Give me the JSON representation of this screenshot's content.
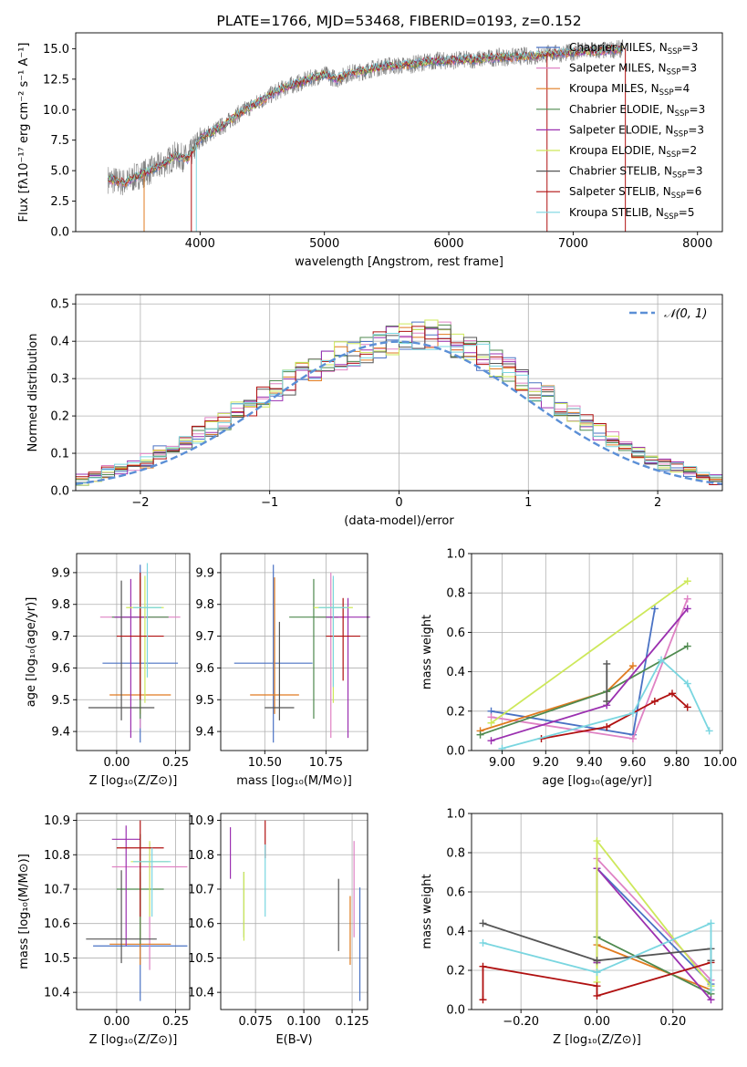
{
  "chart_data": [
    {
      "id": "spectrum",
      "type": "line",
      "title": "PLATE=1766, MJD=53468, FIBERID=0193, z=0.152",
      "xlabel": "wavelength [Angstrom, rest frame]",
      "ylabel": "Flux [fλ10⁻¹⁷ erg cm⁻² s⁻¹ A⁻¹]",
      "xlim": [
        3000,
        8200
      ],
      "ylim": [
        0,
        16.3
      ],
      "xticks": [
        4000,
        5000,
        6000,
        7000,
        8000
      ],
      "yticks": [
        0.0,
        2.5,
        5.0,
        7.5,
        10.0,
        12.5,
        15.0
      ],
      "grid": false,
      "legend_position": "top-right",
      "legend": [
        "Chabrier MILES, N",
        "Salpeter MILES, N",
        "Kroupa MILES, N",
        "Chabrier ELODIE, N",
        "Salpeter ELODIE, N",
        "Kroupa ELODIE, N",
        "Chabrier STELIB, N",
        "Salpeter STELIB, N",
        "Kroupa STELIB, N"
      ],
      "legend_sub": "SSP",
      "legend_n": [
        "3",
        "3",
        "4",
        "3",
        "3",
        "2",
        "3",
        "6",
        "5"
      ],
      "series_colors": [
        "#4a72c4",
        "#df82c4",
        "#e07b20",
        "#4f8a4f",
        "#9b30b0",
        "#cde85a",
        "#555555",
        "#b01010",
        "#7ad6e0"
      ],
      "observed_color": "#808080",
      "spectrum_x": [
        3260,
        3400,
        3500,
        3600,
        3700,
        3800,
        3900,
        4000,
        4100,
        4200,
        4300,
        4400,
        4500,
        4600,
        4700,
        4800,
        4900,
        5000,
        5100,
        5200,
        5300,
        5400,
        5500,
        5600,
        5700,
        5800,
        5900,
        6000,
        6100,
        6200,
        6300,
        6400,
        6500,
        6600,
        6700,
        6800,
        6900,
        7000,
        7100,
        7200,
        7300,
        7400
      ],
      "spectrum_y": [
        4.3,
        4.0,
        4.6,
        5.0,
        5.5,
        6.2,
        6.0,
        7.6,
        8.2,
        8.8,
        9.6,
        10.2,
        10.8,
        11.4,
        11.9,
        12.2,
        12.6,
        12.9,
        12.5,
        13.0,
        13.1,
        13.4,
        13.6,
        13.6,
        13.7,
        13.9,
        14.0,
        14.0,
        14.1,
        14.1,
        14.2,
        14.3,
        14.3,
        14.4,
        14.4,
        14.6,
        14.6,
        14.7,
        14.8,
        14.8,
        14.9,
        15.0
      ]
    },
    {
      "id": "residuals",
      "type": "line",
      "xlabel": "(data-model)/error",
      "ylabel": "Normed distribution",
      "xlim": [
        -2.5,
        2.5
      ],
      "ylim": [
        0,
        0.525
      ],
      "xticks": [
        -2,
        -1,
        0,
        1,
        2
      ],
      "yticks": [
        0.0,
        0.1,
        0.2,
        0.3,
        0.4,
        0.5
      ],
      "grid": true,
      "legend_position": "top-right",
      "legend": [
        "𝒩(0, 1)"
      ],
      "reference_curve": "normal(0,1) pdf",
      "reference_color": "#5b8fd6",
      "bin_edges_start": -2.5,
      "bin_width": 0.1,
      "hist_base": [
        0.03,
        0.04,
        0.05,
        0.06,
        0.07,
        0.08,
        0.1,
        0.11,
        0.13,
        0.15,
        0.17,
        0.19,
        0.21,
        0.23,
        0.25,
        0.27,
        0.29,
        0.31,
        0.33,
        0.35,
        0.36,
        0.37,
        0.38,
        0.39,
        0.4,
        0.41,
        0.42,
        0.42,
        0.41,
        0.39,
        0.38,
        0.36,
        0.34,
        0.32,
        0.29,
        0.27,
        0.25,
        0.22,
        0.2,
        0.18,
        0.16,
        0.14,
        0.12,
        0.1,
        0.08,
        0.07,
        0.06,
        0.05,
        0.04,
        0.03
      ]
    },
    {
      "id": "age-vs-Z",
      "type": "scatter",
      "xlabel": "Z [log₁₀(Z/Z⊙)]",
      "ylabel": "age  [log₁₀(age/yr)]",
      "xlim": [
        -0.17,
        0.31
      ],
      "ylim": [
        9.34,
        9.96
      ],
      "xticks": [
        0.0,
        0.25
      ],
      "yticks": [
        9.4,
        9.5,
        9.6,
        9.7,
        9.8,
        9.9
      ],
      "grid": true,
      "points": [
        {
          "x": 0.1,
          "y": 9.615,
          "xerr": 0.16,
          "yerr_lo": 0.25,
          "yerr_hi": 0.31,
          "color": "#4a72c4"
        },
        {
          "x": 0.1,
          "y": 9.76,
          "xerr": 0.17,
          "yerr_lo": 0.35,
          "yerr_hi": 0.12,
          "color": "#df82c4"
        },
        {
          "x": 0.1,
          "y": 9.515,
          "xerr": 0.13,
          "yerr_lo": 0.06,
          "yerr_hi": 0.37,
          "color": "#e07b20"
        },
        {
          "x": 0.1,
          "y": 9.76,
          "xerr": 0.12,
          "yerr_lo": 0.32,
          "yerr_hi": 0.12,
          "color": "#4f8a4f"
        },
        {
          "x": 0.06,
          "y": 9.76,
          "xerr": 0.07,
          "yerr_lo": 0.38,
          "yerr_hi": 0.12,
          "color": "#9b30b0"
        },
        {
          "x": 0.12,
          "y": 9.79,
          "xerr": 0.08,
          "yerr_lo": 0.3,
          "yerr_hi": 0.1,
          "color": "#cde85a"
        },
        {
          "x": 0.02,
          "y": 9.475,
          "xerr": 0.14,
          "yerr_lo": 0.04,
          "yerr_hi": 0.4,
          "color": "#555555"
        },
        {
          "x": 0.1,
          "y": 9.7,
          "xerr": 0.1,
          "yerr_lo": 0.2,
          "yerr_hi": 0.2,
          "color": "#b01010"
        },
        {
          "x": 0.13,
          "y": 9.79,
          "xerr": 0.06,
          "yerr_lo": 0.22,
          "yerr_hi": 0.14,
          "color": "#7ad6e0"
        }
      ]
    },
    {
      "id": "age-vs-mass",
      "type": "scatter",
      "xlabel": "mass [log₁₀(M/M⊙)]",
      "ylabel": "",
      "xlim": [
        10.32,
        10.92
      ],
      "ylim": [
        9.34,
        9.96
      ],
      "xticks": [
        10.5,
        10.75
      ],
      "yticks": [
        9.4,
        9.5,
        9.6,
        9.7,
        9.8,
        9.9
      ],
      "grid": true,
      "points": [
        {
          "x": 10.535,
          "y": 9.615,
          "xerr": 0.16,
          "yerr_lo": 0.25,
          "yerr_hi": 0.31,
          "color": "#4a72c4"
        },
        {
          "x": 10.77,
          "y": 9.76,
          "xerr": 0.06,
          "yerr_lo": 0.38,
          "yerr_hi": 0.14,
          "color": "#df82c4"
        },
        {
          "x": 10.54,
          "y": 9.515,
          "xerr": 0.1,
          "yerr_lo": 0.06,
          "yerr_hi": 0.37,
          "color": "#e07b20"
        },
        {
          "x": 10.7,
          "y": 9.76,
          "xerr": 0.1,
          "yerr_lo": 0.32,
          "yerr_hi": 0.12,
          "color": "#4f8a4f"
        },
        {
          "x": 10.84,
          "y": 9.76,
          "xerr": 0.09,
          "yerr_lo": 0.38,
          "yerr_hi": 0.06,
          "color": "#9b30b0"
        },
        {
          "x": 10.78,
          "y": 9.79,
          "xerr": 0.08,
          "yerr_lo": 0.3,
          "yerr_hi": 0.09,
          "color": "#cde85a"
        },
        {
          "x": 10.56,
          "y": 9.475,
          "xerr": 0.06,
          "yerr_lo": 0.04,
          "yerr_hi": 0.27,
          "color": "#555555"
        },
        {
          "x": 10.82,
          "y": 9.7,
          "xerr": 0.07,
          "yerr_lo": 0.14,
          "yerr_hi": 0.12,
          "color": "#b01010"
        },
        {
          "x": 10.78,
          "y": 9.79,
          "xerr": 0.06,
          "yerr_lo": 0.25,
          "yerr_hi": 0.1,
          "color": "#7ad6e0"
        }
      ]
    },
    {
      "id": "massweight-vs-age",
      "type": "line",
      "xlabel": "age  [log₁₀(age/yr)]",
      "ylabel": "mass weight",
      "xlim": [
        8.86,
        10.01
      ],
      "ylim": [
        0,
        1.0
      ],
      "xticks": [
        9.0,
        9.2,
        9.4,
        9.6,
        9.8,
        10.0
      ],
      "yticks": [
        0.0,
        0.2,
        0.4,
        0.6,
        0.8,
        1.0
      ],
      "grid": true,
      "series": [
        {
          "color": "#4a72c4",
          "x": [
            8.95,
            9.6,
            9.7
          ],
          "y": [
            0.2,
            0.08,
            0.72
          ]
        },
        {
          "color": "#df82c4",
          "x": [
            8.95,
            9.6,
            9.85
          ],
          "y": [
            0.17,
            0.06,
            0.77
          ]
        },
        {
          "color": "#e07b20",
          "x": [
            8.9,
            9.48,
            9.6
          ],
          "y": [
            0.1,
            0.3,
            0.43
          ]
        },
        {
          "color": "#4f8a4f",
          "x": [
            8.9,
            9.48,
            9.85
          ],
          "y": [
            0.08,
            0.3,
            0.53
          ]
        },
        {
          "color": "#9b30b0",
          "x": [
            8.95,
            9.48,
            9.85
          ],
          "y": [
            0.05,
            0.23,
            0.72
          ]
        },
        {
          "color": "#cde85a",
          "x": [
            8.95,
            9.85
          ],
          "y": [
            0.14,
            0.86
          ]
        },
        {
          "color": "#555555",
          "x": [
            9.48,
            9.48
          ],
          "y": [
            0.25,
            0.44
          ]
        },
        {
          "color": "#b01010",
          "x": [
            9.18,
            9.48,
            9.7,
            9.78,
            9.85
          ],
          "y": [
            0.06,
            0.12,
            0.25,
            0.29,
            0.22
          ]
        },
        {
          "color": "#7ad6e0",
          "x": [
            9.0,
            9.6,
            9.73,
            9.85,
            9.95
          ],
          "y": [
            0.01,
            0.19,
            0.46,
            0.34,
            0.1
          ]
        }
      ]
    },
    {
      "id": "mass-vs-Z",
      "type": "scatter",
      "xlabel": "Z [log₁₀(Z/Z⊙)]",
      "ylabel": "mass [log₁₀(M/M⊙)]",
      "xlim": [
        -0.17,
        0.31
      ],
      "ylim": [
        10.35,
        10.92
      ],
      "xticks": [
        0.0,
        0.25
      ],
      "yticks": [
        10.4,
        10.5,
        10.6,
        10.7,
        10.8,
        10.9
      ],
      "grid": true,
      "points": [
        {
          "x": 0.1,
          "y": 10.535,
          "xerr": 0.2,
          "yerr_lo": 0.16,
          "yerr_hi": 0.2,
          "color": "#4a72c4"
        },
        {
          "x": 0.14,
          "y": 10.765,
          "xerr": 0.16,
          "yerr_lo": 0.3,
          "yerr_hi": 0.07,
          "color": "#df82c4"
        },
        {
          "x": 0.1,
          "y": 10.54,
          "xerr": 0.13,
          "yerr_lo": 0.06,
          "yerr_hi": 0.21,
          "color": "#e07b20"
        },
        {
          "x": 0.1,
          "y": 10.7,
          "xerr": 0.1,
          "yerr_lo": 0.16,
          "yerr_hi": 0.16,
          "color": "#4f8a4f"
        },
        {
          "x": 0.04,
          "y": 10.845,
          "xerr": 0.06,
          "yerr_lo": 0.31,
          "yerr_hi": 0.04,
          "color": "#9b30b0"
        },
        {
          "x": 0.14,
          "y": 10.78,
          "xerr": 0.08,
          "yerr_lo": 0.16,
          "yerr_hi": 0.06,
          "color": "#cde85a"
        },
        {
          "x": 0.02,
          "y": 10.555,
          "xerr": 0.15,
          "yerr_lo": 0.07,
          "yerr_hi": 0.2,
          "color": "#555555"
        },
        {
          "x": 0.1,
          "y": 10.82,
          "xerr": 0.1,
          "yerr_lo": 0.2,
          "yerr_hi": 0.08,
          "color": "#b01010"
        },
        {
          "x": 0.15,
          "y": 10.78,
          "xerr": 0.08,
          "yerr_lo": 0.16,
          "yerr_hi": 0.04,
          "color": "#7ad6e0"
        }
      ]
    },
    {
      "id": "mass-vs-EBV",
      "type": "scatter",
      "xlabel": "E(B-V)",
      "ylabel": "",
      "xlim": [
        0.057,
        0.133
      ],
      "ylim": [
        10.35,
        10.92
      ],
      "xticks": [
        0.075,
        0.1,
        0.125
      ],
      "yticks": [
        10.4,
        10.5,
        10.6,
        10.7,
        10.8,
        10.9
      ],
      "grid": true,
      "points": [
        {
          "x": 0.129,
          "y": 10.535,
          "yerr_lo": 0.16,
          "yerr_hi": 0.17,
          "color": "#4a72c4"
        },
        {
          "x": 0.126,
          "y": 10.7,
          "yerr_lo": 0.14,
          "yerr_hi": 0.14,
          "color": "#df82c4"
        },
        {
          "x": 0.124,
          "y": 10.54,
          "yerr_lo": 0.06,
          "yerr_hi": 0.14,
          "color": "#e07b20"
        },
        {
          "x": 0.069,
          "y": 10.7,
          "yerr_lo": 0.14,
          "yerr_hi": 0.05,
          "color": "#4f8a4f"
        },
        {
          "x": 0.062,
          "y": 10.8,
          "yerr_lo": 0.07,
          "yerr_hi": 0.08,
          "color": "#9b30b0"
        },
        {
          "x": 0.069,
          "y": 10.65,
          "yerr_lo": 0.1,
          "yerr_hi": 0.1,
          "color": "#cde85a"
        },
        {
          "x": 0.118,
          "y": 10.62,
          "yerr_lo": 0.1,
          "yerr_hi": 0.11,
          "color": "#555555"
        },
        {
          "x": 0.08,
          "y": 10.86,
          "yerr_lo": 0.07,
          "yerr_hi": 0.04,
          "color": "#b01010"
        },
        {
          "x": 0.08,
          "y": 10.72,
          "yerr_lo": 0.1,
          "yerr_hi": 0.11,
          "color": "#7ad6e0"
        }
      ]
    },
    {
      "id": "massweight-vs-Z",
      "type": "line",
      "xlabel": "Z [log₁₀(Z/Z⊙)]",
      "ylabel": "mass weight",
      "xlim": [
        -0.33,
        0.33
      ],
      "ylim": [
        0,
        1.0
      ],
      "xticks": [
        -0.2,
        0.0,
        0.2
      ],
      "yticks": [
        0.0,
        0.2,
        0.4,
        0.6,
        0.8,
        1.0
      ],
      "grid": true,
      "series": [
        {
          "color": "#4a72c4",
          "x": [
            0.0,
            0.0,
            0.3
          ],
          "y": [
            0.24,
            0.72,
            0.13
          ]
        },
        {
          "color": "#df82c4",
          "x": [
            0.0,
            0.0,
            0.3
          ],
          "y": [
            0.24,
            0.77,
            0.15
          ]
        },
        {
          "color": "#e07b20",
          "x": [
            0.0,
            0.0,
            0.3
          ],
          "y": [
            0.24,
            0.33,
            0.1
          ]
        },
        {
          "color": "#4f8a4f",
          "x": [
            0.0,
            0.0,
            0.3
          ],
          "y": [
            0.24,
            0.37,
            0.08
          ]
        },
        {
          "color": "#9b30b0",
          "x": [
            0.0,
            0.0,
            0.3
          ],
          "y": [
            0.24,
            0.72,
            0.05
          ]
        },
        {
          "color": "#cde85a",
          "x": [
            0.0,
            0.0,
            0.3
          ],
          "y": [
            0.14,
            0.86,
            0.12
          ]
        },
        {
          "color": "#555555",
          "x": [
            -0.3,
            0.0,
            0.3,
            0.3
          ],
          "y": [
            0.44,
            0.25,
            0.31,
            0.25
          ]
        },
        {
          "color": "#b01010",
          "x": [
            -0.3,
            -0.3,
            0.0,
            0.0,
            0.3
          ],
          "y": [
            0.05,
            0.22,
            0.12,
            0.07,
            0.24
          ]
        },
        {
          "color": "#7ad6e0",
          "x": [
            -0.3,
            0.0,
            0.3,
            0.3
          ],
          "y": [
            0.34,
            0.19,
            0.44,
            0.1
          ]
        }
      ]
    }
  ]
}
